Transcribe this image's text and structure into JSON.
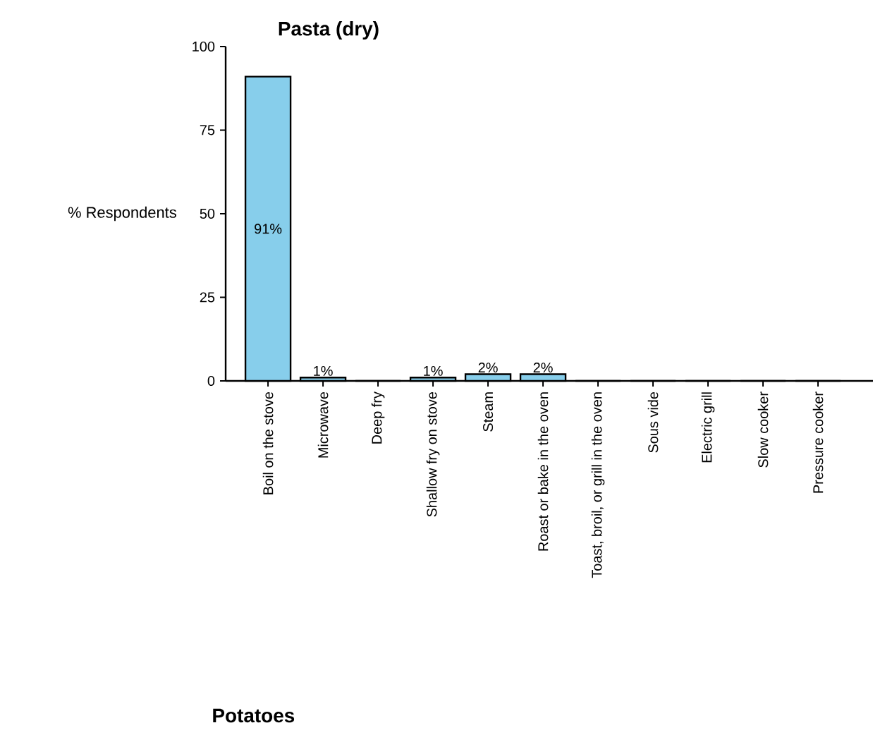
{
  "chart_data": [
    {
      "type": "bar",
      "title": "Pasta (dry)",
      "ylabel": "% Respondents",
      "categories": [
        "Boil on the stove",
        "Microwave",
        "Deep fry",
        "Shallow fry on stove",
        "Steam",
        "Roast or bake in the oven",
        "Toast, broil, or grill in the oven",
        "Sous vide",
        "Electric grill",
        "Slow cooker",
        "Pressure cooker"
      ],
      "values": [
        91,
        1,
        0,
        1,
        2,
        2,
        0,
        0,
        0,
        0,
        0
      ],
      "value_labels": [
        "91%",
        "1%",
        null,
        "1%",
        "2%",
        "2%",
        null,
        null,
        null,
        null,
        null
      ],
      "color": "#87ceeb",
      "ylim": [
        0,
        100
      ],
      "yticks": [
        0,
        25,
        50,
        75,
        100
      ]
    },
    {
      "type": "other",
      "title": "Potatoes"
    }
  ]
}
